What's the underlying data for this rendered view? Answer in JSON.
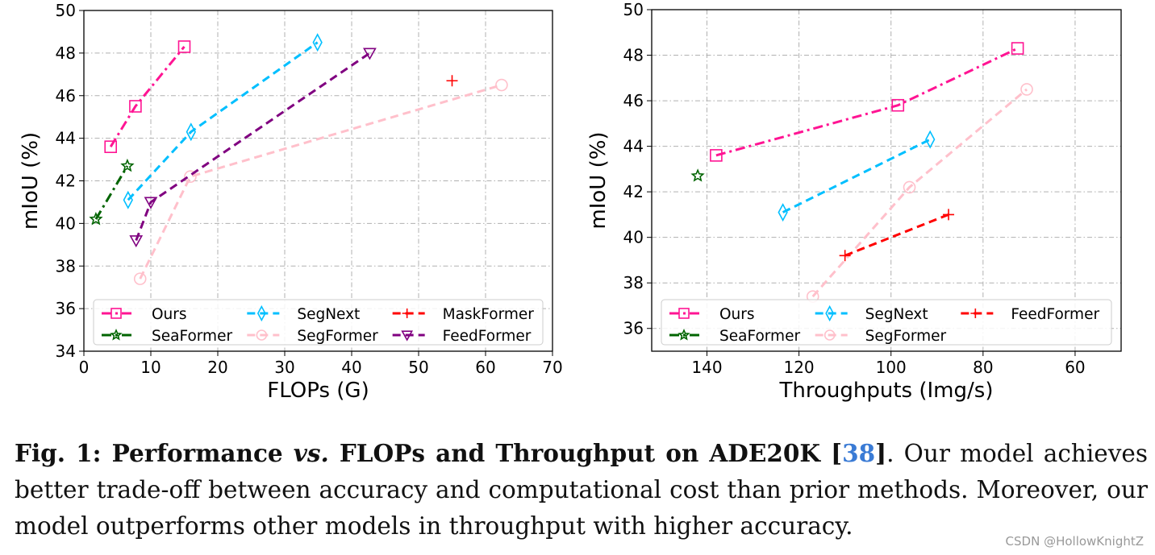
{
  "chart_data": [
    {
      "type": "line",
      "xlabel": "FLOPs (G)",
      "ylabel": "mIoU (%)",
      "xlim": [
        0,
        70
      ],
      "ylim": [
        34,
        50
      ],
      "xticks": [
        0,
        10,
        20,
        30,
        40,
        50,
        60,
        70
      ],
      "yticks": [
        34,
        36,
        38,
        40,
        42,
        44,
        46,
        48,
        50
      ],
      "grid": true,
      "legend_position": "bottom",
      "series": [
        {
          "name": "Ours",
          "color": "#ff1493",
          "marker": "square",
          "dash": "dashdot",
          "x": [
            4,
            7.7,
            15
          ],
          "y": [
            43.6,
            45.5,
            48.3
          ]
        },
        {
          "name": "SeaFormer",
          "color": "#006400",
          "marker": "star",
          "dash": "dashdot",
          "x": [
            1.8,
            6.5
          ],
          "y": [
            40.2,
            42.7
          ]
        },
        {
          "name": "SegNext",
          "color": "#00bfff",
          "marker": "diamond",
          "dash": "dashed",
          "x": [
            6.6,
            16,
            34.9
          ],
          "y": [
            41.1,
            44.3,
            48.5
          ]
        },
        {
          "name": "SegFormer",
          "color": "#ffc0cb",
          "marker": "circle",
          "dash": "dashed",
          "x": [
            8.4,
            15.9,
            62.4
          ],
          "y": [
            37.4,
            42.2,
            46.5
          ]
        },
        {
          "name": "MaskFormer",
          "color": "#ff0000",
          "marker": "plus",
          "dash": "dashed",
          "x": [
            55
          ],
          "y": [
            46.7
          ]
        },
        {
          "name": "FeedFormer",
          "color": "#800080",
          "marker": "triangle-down",
          "dash": "dashed",
          "x": [
            7.8,
            10,
            42.7
          ],
          "y": [
            39.2,
            41,
            48
          ]
        }
      ]
    },
    {
      "type": "line",
      "xlabel": "Throughputs (Img/s)",
      "ylabel": "mIoU (%)",
      "xlim": [
        152,
        50
      ],
      "ylim": [
        35,
        50
      ],
      "xticks": [
        140,
        120,
        100,
        80,
        60
      ],
      "yticks": [
        36,
        38,
        40,
        42,
        44,
        46,
        48,
        50
      ],
      "grid": true,
      "legend_position": "bottom",
      "series": [
        {
          "name": "Ours",
          "color": "#ff1493",
          "marker": "square",
          "dash": "dashdot",
          "x": [
            138,
            98.5,
            72.5
          ],
          "y": [
            43.6,
            45.8,
            48.3
          ]
        },
        {
          "name": "SeaFormer",
          "color": "#006400",
          "marker": "star",
          "dash": "dashdot",
          "x": [
            142
          ],
          "y": [
            42.7
          ]
        },
        {
          "name": "SegNext",
          "color": "#00bfff",
          "marker": "diamond",
          "dash": "dashed",
          "x": [
            123.5,
            91.5
          ],
          "y": [
            41.1,
            44.3
          ]
        },
        {
          "name": "SegFormer",
          "color": "#ffc0cb",
          "marker": "circle",
          "dash": "dashed",
          "x": [
            117,
            96,
            70.5
          ],
          "y": [
            37.4,
            42.2,
            46.5
          ]
        },
        {
          "name": "FeedFormer",
          "color": "#ff0000",
          "marker": "plus",
          "dash": "dashed",
          "x": [
            110,
            87.5
          ],
          "y": [
            39.2,
            41.0
          ]
        }
      ]
    }
  ],
  "caption": {
    "fig_label": "Fig. 1:",
    "title_a": " Performance ",
    "title_vs": "vs.",
    "title_b": " FLOPs and Throughput on ADE20K [",
    "ref": "38",
    "title_c": "]",
    "body": ". Our model achieves better trade-off between accuracy and computational cost than prior methods. Moreover, our model outperforms other models in throughput with higher accuracy."
  },
  "watermark": "CSDN @HollowKnightZ"
}
